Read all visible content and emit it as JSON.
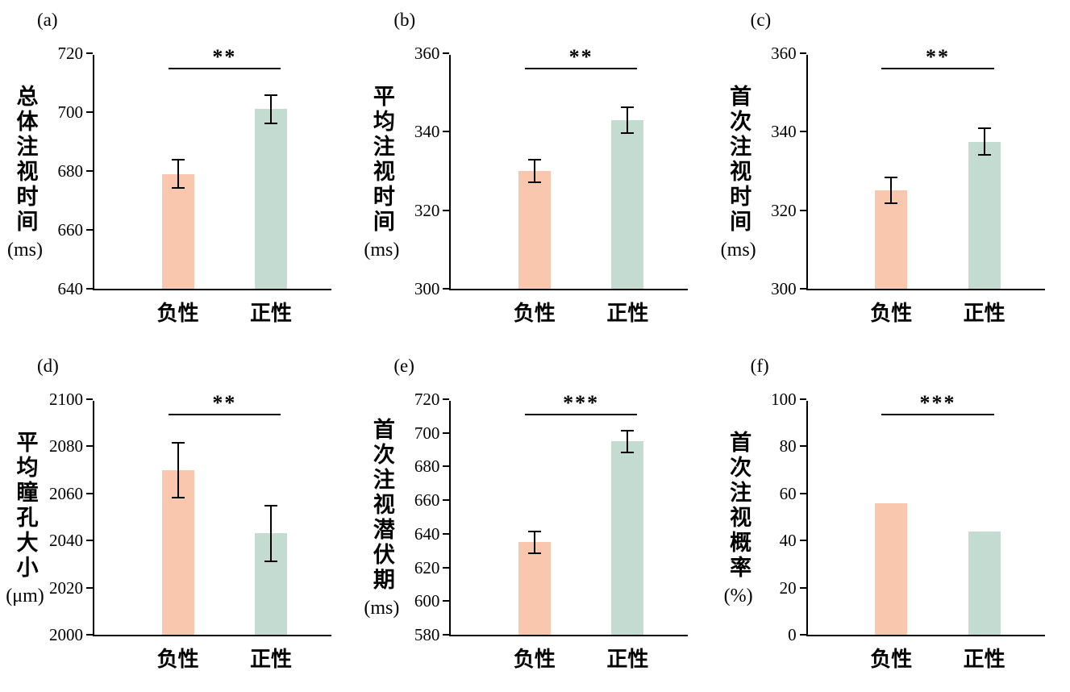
{
  "figure": {
    "background": "#ffffff"
  },
  "colors": {
    "negative": "#F9C7AE",
    "positive": "#C3DBD1"
  },
  "chart_data": [
    {
      "panel": "(a)",
      "type": "bar",
      "ylabel": "总体注视时间",
      "unit": "(ms)",
      "categories": [
        "负性",
        "正性"
      ],
      "values": [
        679,
        701
      ],
      "errors": [
        5,
        5
      ],
      "ylim": [
        640,
        720
      ],
      "yticks": [
        640,
        660,
        680,
        700,
        720
      ],
      "sig": "**",
      "legend": "none",
      "grid": "off"
    },
    {
      "panel": "(b)",
      "type": "bar",
      "ylabel": "平均注视时间",
      "unit": "(ms)",
      "categories": [
        "负性",
        "正性"
      ],
      "values": [
        330,
        343
      ],
      "errors": [
        3,
        3.5
      ],
      "ylim": [
        300,
        360
      ],
      "yticks": [
        300,
        320,
        340,
        360
      ],
      "sig": "**",
      "legend": "none",
      "grid": "off"
    },
    {
      "panel": "(c)",
      "type": "bar",
      "ylabel": "首次注视时间",
      "unit": "(ms)",
      "categories": [
        "负性",
        "正性"
      ],
      "values": [
        325,
        337.5
      ],
      "errors": [
        3.5,
        3.5
      ],
      "ylim": [
        300,
        360
      ],
      "yticks": [
        300,
        320,
        340,
        360
      ],
      "sig": "**",
      "legend": "none",
      "grid": "off"
    },
    {
      "panel": "(d)",
      "type": "bar",
      "ylabel": "平均瞳孔大小",
      "unit": "(μm)",
      "categories": [
        "负性",
        "正性"
      ],
      "values": [
        2070,
        2043
      ],
      "errors": [
        12,
        12
      ],
      "ylim": [
        2000,
        2100
      ],
      "yticks": [
        2000,
        2020,
        2040,
        2060,
        2080,
        2100
      ],
      "sig": "**",
      "legend": "none",
      "grid": "off"
    },
    {
      "panel": "(e)",
      "type": "bar",
      "ylabel": "首次注视潜伏期",
      "unit": "(ms)",
      "categories": [
        "负性",
        "正性"
      ],
      "values": [
        635,
        695
      ],
      "errors": [
        7,
        7
      ],
      "ylim": [
        580,
        720
      ],
      "yticks": [
        580,
        600,
        620,
        640,
        660,
        680,
        700,
        720
      ],
      "sig": "***",
      "legend": "none",
      "grid": "off"
    },
    {
      "panel": "(f)",
      "type": "bar",
      "ylabel": "首次注视概率",
      "unit": "(%)",
      "categories": [
        "负性",
        "正性"
      ],
      "values": [
        56,
        44
      ],
      "errors": [
        0,
        0
      ],
      "ylim": [
        0,
        100
      ],
      "yticks": [
        0,
        20,
        40,
        60,
        80,
        100
      ],
      "sig": "***",
      "legend": "none",
      "grid": "off"
    }
  ]
}
